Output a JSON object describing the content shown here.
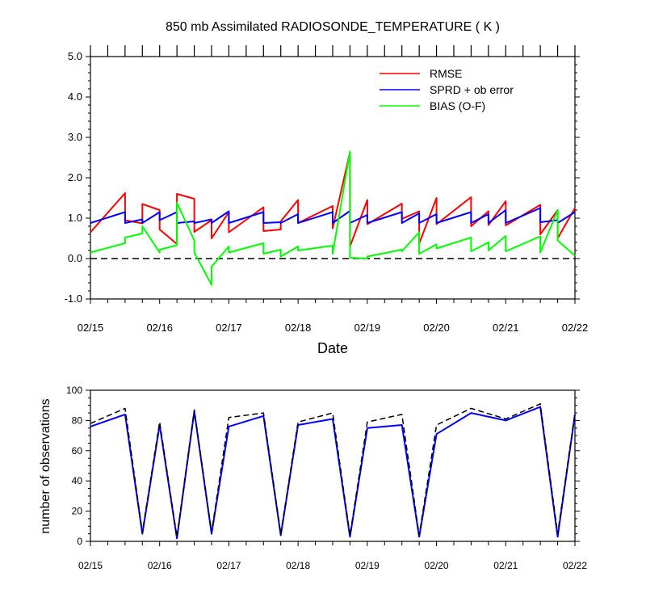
{
  "chart_data": [
    {
      "type": "line",
      "title": "850 mb Assimilated RADIOSONDE_TEMPERATURE ( K )",
      "xlabel": "Date",
      "ylabel": "",
      "x_ticks": [
        "02/15",
        "02/16",
        "02/17",
        "02/18",
        "02/19",
        "02/20",
        "02/21",
        "02/22"
      ],
      "y_ticks": [
        "-1.0",
        "0.0",
        "1.0",
        "2.0",
        "3.0",
        "4.0",
        "5.0"
      ],
      "xlim": [
        0,
        7
      ],
      "ylim": [
        -1,
        5
      ],
      "reference_line_y": 0,
      "legend_position": "top-right",
      "series": [
        {
          "name": "RMSE",
          "color": "#ff0000",
          "x": [
            0,
            0.5,
            0.5,
            0.75,
            0.75,
            1.0,
            1.0,
            1.25,
            1.25,
            1.5,
            1.5,
            1.75,
            1.75,
            2.0,
            2.0,
            2.5,
            2.5,
            2.75,
            2.75,
            3.0,
            3.0,
            3.5,
            3.5,
            3.75,
            3.75,
            4.0,
            4.0,
            4.5,
            4.5,
            4.75,
            4.75,
            5.0,
            5.0,
            5.5,
            5.5,
            5.75,
            5.75,
            6.0,
            6.0,
            6.5,
            6.5,
            6.75,
            6.75,
            7.0
          ],
          "y": [
            0.65,
            1.62,
            0.95,
            0.87,
            1.35,
            1.2,
            0.72,
            0.36,
            1.6,
            1.48,
            0.66,
            0.95,
            0.5,
            1.15,
            0.65,
            1.27,
            0.68,
            0.72,
            0.92,
            1.45,
            0.88,
            1.3,
            0.75,
            2.63,
            0.3,
            1.45,
            0.85,
            1.36,
            0.98,
            1.17,
            0.37,
            1.5,
            0.85,
            1.52,
            0.8,
            1.17,
            0.83,
            1.42,
            0.82,
            1.33,
            0.6,
            1.2,
            0.5,
            1.25
          ]
        },
        {
          "name": "SPRD + ob error",
          "color": "#0000ff",
          "x": [
            0,
            0.5,
            0.5,
            0.75,
            0.75,
            1.0,
            1.0,
            1.25,
            1.25,
            1.5,
            1.5,
            1.75,
            1.75,
            2.0,
            2.0,
            2.5,
            2.5,
            2.75,
            2.75,
            3.0,
            3.0,
            3.5,
            3.5,
            3.75,
            3.75,
            4.0,
            4.0,
            4.5,
            4.5,
            4.75,
            4.75,
            5.0,
            5.0,
            5.5,
            5.5,
            5.75,
            5.75,
            6.0,
            6.0,
            6.5,
            6.5,
            6.75,
            6.75,
            7.0
          ],
          "y": [
            0.88,
            1.15,
            0.88,
            0.97,
            0.88,
            1.15,
            0.95,
            1.15,
            0.88,
            0.92,
            0.88,
            0.97,
            0.88,
            1.17,
            0.88,
            1.15,
            0.88,
            0.9,
            0.88,
            1.1,
            0.88,
            1.15,
            0.88,
            1.18,
            0.88,
            1.08,
            0.88,
            1.15,
            0.88,
            1.12,
            0.88,
            1.1,
            0.88,
            1.15,
            0.88,
            1.1,
            0.88,
            1.2,
            0.88,
            1.25,
            0.9,
            0.95,
            0.88,
            1.15
          ]
        },
        {
          "name": "BIAS (O-F)",
          "color": "#00ff00",
          "x": [
            0,
            0.5,
            0.5,
            0.75,
            0.75,
            1.0,
            1.0,
            1.25,
            1.25,
            1.5,
            1.5,
            1.75,
            1.75,
            2.0,
            2.0,
            2.5,
            2.5,
            2.75,
            2.75,
            3.0,
            3.0,
            3.5,
            3.5,
            3.75,
            3.75,
            4.0,
            4.0,
            4.5,
            4.5,
            4.75,
            4.75,
            5.0,
            5.0,
            5.5,
            5.5,
            5.75,
            5.75,
            6.0,
            6.0,
            6.5,
            6.5,
            6.75,
            6.75,
            7.0
          ],
          "y": [
            0.15,
            0.38,
            0.52,
            0.62,
            0.8,
            0.15,
            0.22,
            0.33,
            1.38,
            0.45,
            0.15,
            -0.65,
            -0.2,
            0.3,
            0.15,
            0.38,
            0.12,
            0.22,
            0.05,
            0.3,
            0.2,
            0.32,
            0.12,
            2.65,
            0.02,
            0.0,
            0.05,
            0.22,
            0.18,
            0.65,
            0.12,
            0.35,
            0.25,
            0.52,
            0.18,
            0.4,
            0.2,
            0.56,
            0.18,
            0.55,
            0.15,
            1.2,
            0.45,
            0.07
          ]
        }
      ]
    },
    {
      "type": "line",
      "title": "",
      "xlabel": "",
      "ylabel": "number of observations",
      "x_ticks": [
        "02/15",
        "02/16",
        "02/17",
        "02/18",
        "02/19",
        "02/20",
        "02/21",
        "02/22"
      ],
      "y_ticks": [
        "0",
        "20",
        "40",
        "60",
        "80",
        "100"
      ],
      "xlim": [
        0,
        7
      ],
      "ylim": [
        0,
        100
      ],
      "series": [
        {
          "name": "",
          "color": "#0000ff",
          "style": "solid",
          "x": [
            0,
            0.5,
            0.75,
            1.0,
            1.25,
            1.5,
            1.75,
            2.0,
            2.5,
            2.75,
            3.0,
            3.5,
            3.75,
            4.0,
            4.5,
            4.75,
            5.0,
            5.5,
            6.0,
            6.5,
            6.75,
            7.0
          ],
          "y": [
            76,
            84,
            5,
            77,
            2,
            86,
            5,
            76,
            83,
            4,
            77,
            81,
            3,
            75,
            77,
            3,
            71,
            85,
            80,
            89,
            3,
            84
          ]
        },
        {
          "name": "",
          "color": "#000000",
          "style": "dashed",
          "x": [
            0,
            0.5,
            0.75,
            1.0,
            1.25,
            1.5,
            1.75,
            2.0,
            2.5,
            2.75,
            3.0,
            3.5,
            3.75,
            4.0,
            4.5,
            4.75,
            5.0,
            5.5,
            6.0,
            6.5,
            6.75,
            7.0
          ],
          "y": [
            78,
            88,
            6,
            79,
            3,
            87,
            6,
            82,
            85,
            5,
            79,
            85,
            4,
            79,
            84,
            4,
            77,
            88,
            81,
            91,
            5,
            85
          ]
        }
      ]
    }
  ]
}
